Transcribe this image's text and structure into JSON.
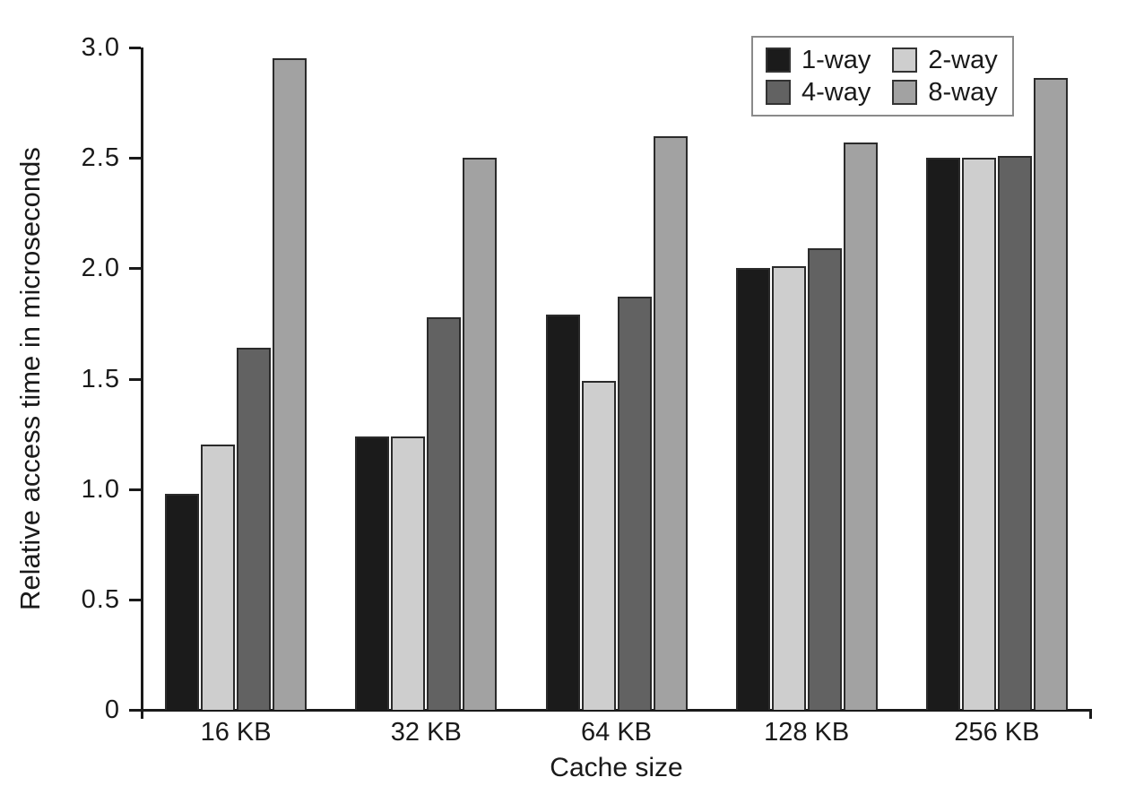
{
  "figure": {
    "background": "#ffffff",
    "axis_color": "#1a1a1a",
    "bar_border_color": "#2b2b2b",
    "legend_border_color": "#8a8a8a"
  },
  "chart_data": {
    "type": "bar",
    "title": "",
    "xlabel": "Cache size",
    "ylabel": "Relative access time in microseconds",
    "categories": [
      "16 KB",
      "32 KB",
      "64 KB",
      "128 KB",
      "256 KB"
    ],
    "series": [
      {
        "name": "1-way",
        "color": "#1b1b1b",
        "values": [
          0.98,
          1.24,
          1.79,
          2.0,
          2.5
        ]
      },
      {
        "name": "2-way",
        "color": "#cecece",
        "values": [
          1.2,
          1.24,
          1.49,
          2.01,
          2.5
        ]
      },
      {
        "name": "4-way",
        "color": "#626262",
        "values": [
          1.64,
          1.78,
          1.87,
          2.09,
          2.51
        ]
      },
      {
        "name": "8-way",
        "color": "#a2a2a2",
        "values": [
          2.95,
          2.5,
          2.6,
          2.57,
          2.86
        ]
      }
    ],
    "ylim": [
      0,
      3.0
    ],
    "yticks": [
      {
        "v": 0.0,
        "label": "0"
      },
      {
        "v": 0.5,
        "label": "0.5"
      },
      {
        "v": 1.0,
        "label": "1.0"
      },
      {
        "v": 1.5,
        "label": "1.5"
      },
      {
        "v": 2.0,
        "label": "2.0"
      },
      {
        "v": 2.5,
        "label": "2.5"
      },
      {
        "v": 3.0,
        "label": "3.0"
      }
    ],
    "grid": false,
    "legend_position": "top-right"
  }
}
